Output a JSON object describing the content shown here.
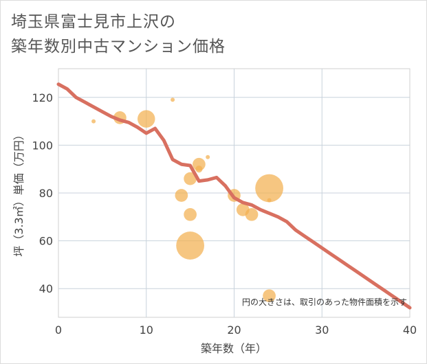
{
  "title_line1": "埼玉県富士見市上沢の",
  "title_line2": "築年数別中古マンション価格",
  "chart_data": {
    "type": "scatter",
    "title": "埼玉県富士見市上沢の築年数別中古マンション価格",
    "xlabel": "築年数（年）",
    "ylabel": "坪（3.3㎡）単価（万円）",
    "xlim": [
      0,
      40
    ],
    "ylim": [
      28,
      132
    ],
    "xticks": [
      0,
      10,
      20,
      30,
      40
    ],
    "yticks": [
      40,
      60,
      80,
      100,
      120
    ],
    "grid": true,
    "note": "円の大きさは、取引のあった物件面積を示す",
    "colors": {
      "bubble": "#f2b050",
      "line": "#d87060",
      "grid": "#c8d2dc"
    },
    "bubbles": [
      {
        "x": 4,
        "y": 110,
        "size": 0.15
      },
      {
        "x": 7,
        "y": 111.5,
        "size": 0.55
      },
      {
        "x": 10,
        "y": 111,
        "size": 0.75
      },
      {
        "x": 13,
        "y": 119,
        "size": 0.15
      },
      {
        "x": 14,
        "y": 79,
        "size": 0.55
      },
      {
        "x": 15,
        "y": 86,
        "size": 0.55
      },
      {
        "x": 15,
        "y": 71,
        "size": 0.55
      },
      {
        "x": 15,
        "y": 58,
        "size": 1.2
      },
      {
        "x": 16,
        "y": 92,
        "size": 0.55
      },
      {
        "x": 16,
        "y": 90,
        "size": 0.3
      },
      {
        "x": 17,
        "y": 95,
        "size": 0.15
      },
      {
        "x": 20,
        "y": 79,
        "size": 0.55
      },
      {
        "x": 21,
        "y": 73,
        "size": 0.55
      },
      {
        "x": 22,
        "y": 71,
        "size": 0.55
      },
      {
        "x": 24,
        "y": 82,
        "size": 1.2
      },
      {
        "x": 24,
        "y": 77,
        "size": 0.15
      },
      {
        "x": 24,
        "y": 37,
        "size": 0.55
      }
    ],
    "line": {
      "x": [
        0,
        1,
        2,
        3,
        4,
        5,
        6,
        7,
        8,
        9,
        10,
        11,
        12,
        13,
        14,
        15,
        16,
        17,
        18,
        19,
        20,
        21,
        22,
        23,
        24,
        25,
        26,
        27,
        28,
        29,
        30,
        31,
        32,
        33,
        34,
        35,
        36,
        37,
        38,
        39,
        40
      ],
      "y": [
        125.5,
        123.5,
        120,
        118,
        116,
        114,
        112,
        110.5,
        109.5,
        107.5,
        105,
        107,
        102,
        94,
        92,
        91.5,
        85,
        85.5,
        86.5,
        83,
        78,
        76,
        75,
        73,
        71.5,
        70,
        68,
        64.5,
        62,
        59.5,
        57,
        54.5,
        52,
        49.5,
        47,
        44.5,
        42,
        39.5,
        37,
        34.5,
        32
      ]
    }
  }
}
